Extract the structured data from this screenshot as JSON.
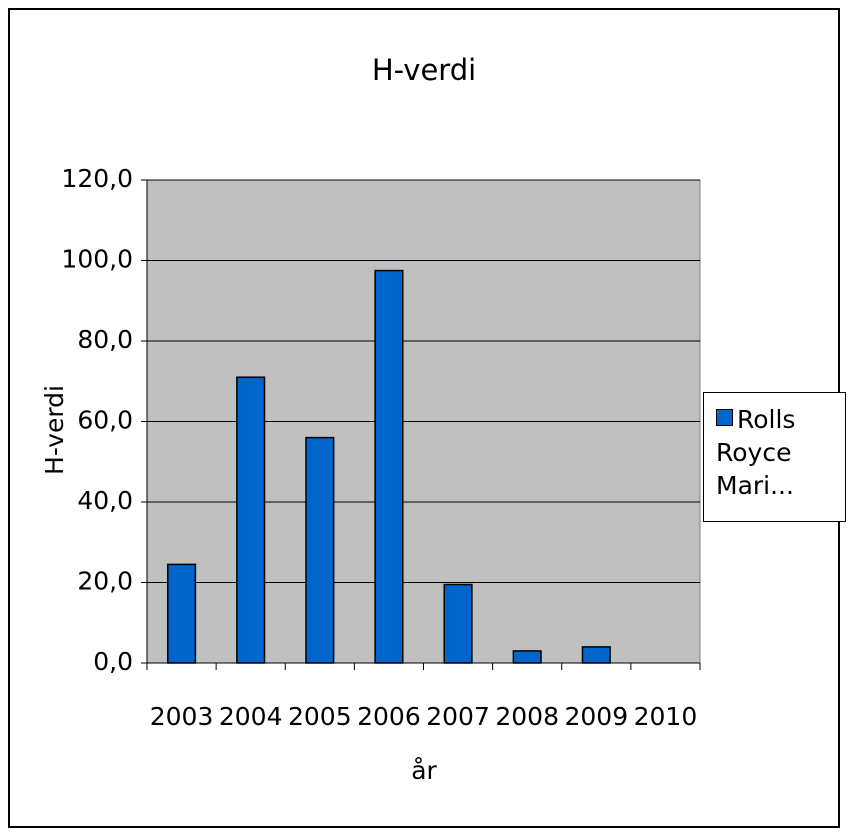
{
  "chart_data": {
    "type": "bar",
    "title": "H-verdi",
    "x_label": "år",
    "y_label": "H-verdi",
    "categories": [
      "2003",
      "2004",
      "2005",
      "2006",
      "2007",
      "2008",
      "2009",
      "2010"
    ],
    "series": [
      {
        "name": "Rolls Royce Mari...",
        "color": "#0066cc",
        "values": [
          24.5,
          71,
          56,
          97.5,
          19.5,
          3,
          4,
          null
        ]
      }
    ],
    "ylim": [
      0,
      120
    ],
    "yticks": [
      {
        "value": 0,
        "label": "0,0"
      },
      {
        "value": 20,
        "label": "20,0"
      },
      {
        "value": 40,
        "label": "40,0"
      },
      {
        "value": 60,
        "label": "60,0"
      },
      {
        "value": 80,
        "label": "80,0"
      },
      {
        "value": 100,
        "label": "100,0"
      },
      {
        "value": 120,
        "label": "120,0"
      }
    ],
    "grid": true,
    "legend": "right"
  }
}
